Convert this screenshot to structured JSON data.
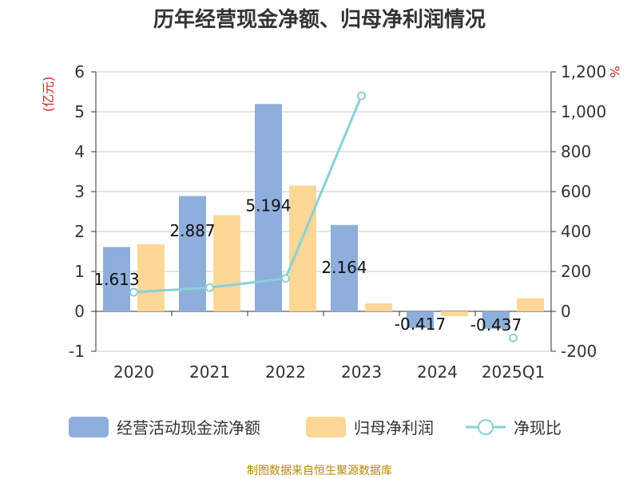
{
  "title": "历年经营现金净额、归母净利润情况",
  "source": "制图数据来自恒生聚源数据库",
  "chart_data": {
    "type": "bar",
    "categories": [
      "2020",
      "2021",
      "2022",
      "2023",
      "2024",
      "2025Q1"
    ],
    "y_left": {
      "unit": "(亿元)",
      "ticks": [
        "6",
        "5",
        "4",
        "3",
        "2",
        "1",
        "0",
        "-1"
      ],
      "range": [
        -1,
        6
      ]
    },
    "y_right": {
      "unit": "%",
      "ticks": [
        "1,200",
        "1,000",
        "800",
        "600",
        "400",
        "200",
        "0",
        "-200"
      ],
      "range": [
        -200,
        1200
      ]
    },
    "series": [
      {
        "name": "经营活动现金流净额",
        "type": "bar",
        "axis": "left",
        "color": "#8eaedb",
        "values": [
          1.613,
          2.887,
          5.194,
          2.164,
          -0.417,
          -0.437
        ],
        "labels": [
          "1.613",
          "2.887",
          "5.194",
          "2.164",
          "-0.417",
          "-0.437"
        ]
      },
      {
        "name": "归母净利润",
        "type": "bar",
        "axis": "left",
        "color": "#fdd795",
        "values": [
          1.68,
          2.41,
          3.15,
          0.2,
          -0.12,
          0.33
        ]
      },
      {
        "name": "净现比",
        "type": "line",
        "axis": "right",
        "color": "#88d1d6",
        "values": [
          96,
          119,
          165,
          1080,
          null,
          -133
        ]
      }
    ],
    "legend_position": "bottom",
    "grid": true
  }
}
